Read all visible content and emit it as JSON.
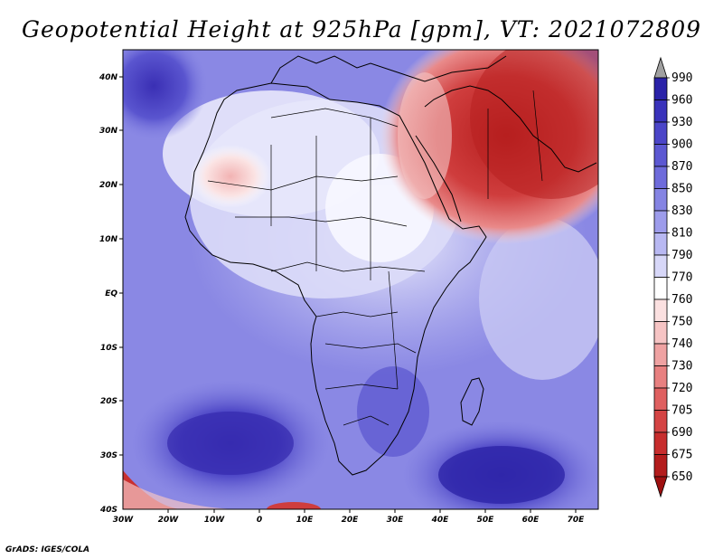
{
  "title": "Geopotential Height at 925hPa [gpm], VT: 2021072809",
  "credit": "GrADS: IGES/COLA",
  "lat_labels": [
    "40N",
    "30N",
    "20N",
    "10N",
    "EQ",
    "10S",
    "20S",
    "30S",
    "40S"
  ],
  "lon_labels": [
    "30W",
    "20W",
    "10W",
    "0",
    "10E",
    "20E",
    "30E",
    "40E",
    "50E",
    "60E",
    "70E"
  ],
  "colorbar": {
    "levels": [
      "990",
      "960",
      "930",
      "900",
      "870",
      "850",
      "830",
      "810",
      "790",
      "770",
      "760",
      "750",
      "740",
      "730",
      "720",
      "705",
      "690",
      "675",
      "650"
    ],
    "colors": [
      "#1a0f8c",
      "#2a22a8",
      "#3a33bb",
      "#4b45c8",
      "#5c58d2",
      "#6e6bdb",
      "#8584e3",
      "#9d9ceb",
      "#b8b8f2",
      "#d7d7f8",
      "#ffffff",
      "#fbe0e0",
      "#f6c4c4",
      "#efa2a2",
      "#e88080",
      "#df6060",
      "#d44444",
      "#c72d2d",
      "#b31c1c",
      "#9e1010"
    ]
  }
}
